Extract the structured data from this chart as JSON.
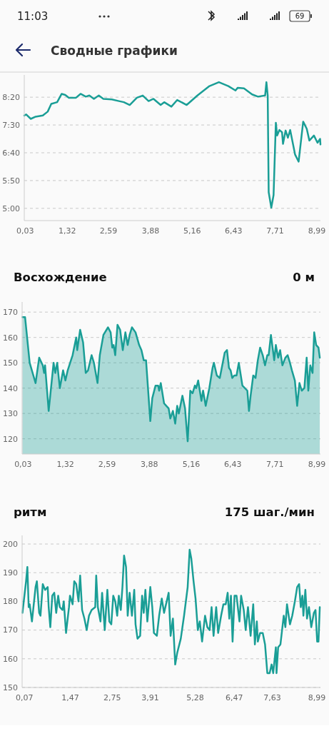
{
  "chart_data": [
    {
      "type": "line",
      "title": "Сводные графики",
      "annotations": [
        "11:03",
        "69"
      ],
      "color": "#1a9e96",
      "grid": "y",
      "xlim": [
        0,
        9.1
      ],
      "ylim": [
        278,
        540
      ],
      "xticks": [
        {
          "value": 0.03,
          "label": "0,03"
        },
        {
          "value": 1.32,
          "label": "1,32"
        },
        {
          "value": 2.59,
          "label": "2,59"
        },
        {
          "value": 3.88,
          "label": "3,88"
        },
        {
          "value": 5.16,
          "label": "5,16"
        },
        {
          "value": 6.43,
          "label": "6,43"
        },
        {
          "value": 7.71,
          "label": "7,71"
        },
        {
          "value": 8.99,
          "label": "8,99"
        }
      ],
      "yticks": [
        {
          "value": 300,
          "label": "5:00"
        },
        {
          "value": 350,
          "label": "5:50"
        },
        {
          "value": 400,
          "label": "6:40"
        },
        {
          "value": 450,
          "label": "7:30"
        },
        {
          "value": 500,
          "label": "8:20"
        }
      ],
      "x": [
        0,
        0.06,
        0.2,
        0.35,
        0.57,
        0.72,
        0.83,
        1.01,
        1.15,
        1.26,
        1.37,
        1.59,
        1.73,
        1.89,
        2.0,
        2.14,
        2.29,
        2.43,
        2.69,
        2.91,
        3.06,
        3.24,
        3.46,
        3.64,
        3.82,
        3.97,
        4.19,
        4.3,
        4.52,
        4.7,
        4.99,
        5.32,
        5.69,
        5.98,
        6.27,
        6.49,
        6.56,
        6.75,
        7.0,
        7.18,
        7.4,
        7.44,
        7.48,
        7.51,
        7.59,
        7.66,
        7.73,
        7.77,
        7.84,
        7.92,
        7.95,
        8.03,
        8.1,
        8.17,
        8.32,
        8.43,
        8.57,
        8.68,
        8.76,
        8.9,
        9.01,
        9.09,
        9.1
      ],
      "values": [
        467,
        469,
        461,
        465,
        467,
        474,
        488,
        491,
        506,
        504,
        499,
        499,
        506,
        501,
        503,
        497,
        503,
        497,
        496,
        493,
        491,
        486,
        499,
        503,
        493,
        497,
        486,
        491,
        483,
        495,
        486,
        503,
        520,
        527,
        520,
        512,
        517,
        516,
        505,
        501,
        503,
        527,
        503,
        329,
        301,
        324,
        454,
        431,
        441,
        437,
        416,
        440,
        427,
        441,
        397,
        384,
        456,
        443,
        422,
        431,
        418,
        425,
        415
      ]
    },
    {
      "type": "area",
      "title": "Восхождение",
      "subtitle": "0 м",
      "color": "#1a9e96",
      "grid": "y",
      "xlim": [
        0,
        9.1
      ],
      "ylim": [
        114,
        174
      ],
      "xticks": [
        {
          "value": 0.03,
          "label": "0,03"
        },
        {
          "value": 1.32,
          "label": "1,32"
        },
        {
          "value": 2.59,
          "label": "2,59"
        },
        {
          "value": 3.88,
          "label": "3,88"
        },
        {
          "value": 5.16,
          "label": "5,16"
        },
        {
          "value": 6.43,
          "label": "6,43"
        },
        {
          "value": 7.71,
          "label": "7,71"
        },
        {
          "value": 8.99,
          "label": "8,99"
        }
      ],
      "yticks": [
        120,
        130,
        140,
        150,
        160,
        170
      ],
      "x": [
        0.01,
        0.09,
        0.23,
        0.41,
        0.52,
        0.63,
        0.67,
        0.7,
        0.81,
        0.96,
        1.01,
        1.07,
        1.15,
        1.25,
        1.32,
        1.39,
        1.54,
        1.65,
        1.68,
        1.77,
        1.86,
        1.94,
        2.01,
        2.12,
        2.19,
        2.3,
        2.37,
        2.48,
        2.62,
        2.7,
        2.75,
        2.79,
        2.84,
        2.91,
        2.99,
        3.07,
        3.15,
        3.22,
        3.28,
        3.35,
        3.46,
        3.57,
        3.64,
        3.71,
        3.78,
        3.91,
        3.97,
        4.07,
        4.15,
        4.18,
        4.23,
        4.33,
        4.4,
        4.47,
        4.52,
        4.6,
        4.67,
        4.73,
        4.78,
        4.89,
        4.97,
        5.05,
        5.13,
        5.2,
        5.27,
        5.31,
        5.37,
        5.47,
        5.52,
        5.6,
        5.71,
        5.81,
        5.85,
        5.94,
        6.03,
        6.18,
        6.25,
        6.31,
        6.36,
        6.41,
        6.47,
        6.54,
        6.61,
        6.72,
        6.87,
        6.92,
        6.97,
        7.05,
        7.12,
        7.19,
        7.26,
        7.34,
        7.41,
        7.48,
        7.52,
        7.59,
        7.69,
        7.74,
        7.81,
        7.87,
        7.94,
        8.03,
        8.1,
        8.17,
        8.23,
        8.32,
        8.39,
        8.46,
        8.53,
        8.61,
        8.68,
        8.73,
        8.79,
        8.86,
        8.91,
        8.97,
        9.04,
        9.08
      ],
      "values": [
        168,
        168,
        150,
        142,
        152,
        149,
        146,
        149,
        131,
        150,
        146,
        150,
        140,
        147,
        143,
        147,
        153,
        160,
        155,
        163,
        158,
        146,
        147,
        153,
        150,
        142,
        153,
        161,
        164,
        162,
        156,
        157,
        153,
        165,
        163,
        155,
        162,
        157,
        161,
        164,
        162,
        157,
        155,
        151,
        151,
        127,
        136,
        141,
        141,
        139,
        142,
        134,
        133,
        132,
        128,
        131,
        126,
        133,
        130,
        137,
        132,
        119,
        139,
        138,
        141,
        140,
        143,
        135,
        139,
        133,
        140,
        148,
        150,
        145,
        144,
        154,
        155,
        148,
        147,
        144,
        145,
        145,
        150,
        141,
        139,
        131,
        137,
        145,
        144,
        151,
        156,
        153,
        149,
        153,
        153,
        161,
        151,
        157,
        152,
        155,
        149,
        152,
        153,
        150,
        147,
        143,
        133,
        142,
        139,
        140,
        152,
        139,
        149,
        146,
        162,
        157,
        156,
        152
      ]
    },
    {
      "type": "line",
      "title": "ритм",
      "subtitle": "175 шаг./мин",
      "color": "#1a9e96",
      "grid": "y",
      "xlim": [
        0,
        9.1
      ],
      "ylim": [
        150,
        203
      ],
      "xticks": [
        {
          "value": 0.07,
          "label": "0,07"
        },
        {
          "value": 1.47,
          "label": "1,47"
        },
        {
          "value": 2.75,
          "label": "2,75"
        },
        {
          "value": 3.91,
          "label": "3,91"
        },
        {
          "value": 5.28,
          "label": "5,28"
        },
        {
          "value": 6.47,
          "label": "6,47"
        },
        {
          "value": 7.63,
          "label": "7,63"
        },
        {
          "value": 8.99,
          "label": "8,99"
        }
      ],
      "yticks": [
        150,
        160,
        170,
        180,
        190,
        200
      ],
      "x": [
        0.01,
        0.12,
        0.16,
        0.2,
        0.23,
        0.3,
        0.41,
        0.45,
        0.52,
        0.56,
        0.63,
        0.7,
        0.78,
        0.81,
        0.86,
        0.92,
        0.98,
        1.04,
        1.1,
        1.15,
        1.23,
        1.27,
        1.34,
        1.43,
        1.46,
        1.54,
        1.59,
        1.65,
        1.72,
        1.77,
        1.83,
        1.9,
        1.97,
        2.04,
        2.12,
        2.23,
        2.26,
        2.31,
        2.39,
        2.44,
        2.52,
        2.6,
        2.66,
        2.72,
        2.78,
        2.84,
        2.9,
        2.95,
        3.01,
        3.06,
        3.11,
        3.17,
        3.22,
        3.28,
        3.35,
        3.42,
        3.46,
        3.52,
        3.6,
        3.66,
        3.71,
        3.76,
        3.82,
        3.91,
        3.97,
        4.02,
        4.11,
        4.18,
        4.26,
        4.33,
        4.47,
        4.53,
        4.6,
        4.67,
        4.73,
        4.84,
        4.94,
        5.05,
        5.11,
        5.16,
        5.23,
        5.29,
        5.36,
        5.42,
        5.49,
        5.58,
        5.65,
        5.72,
        5.78,
        5.84,
        5.92,
        5.98,
        6.07,
        6.14,
        6.21,
        6.27,
        6.32,
        6.37,
        6.42,
        6.48,
        6.54,
        6.63,
        6.68,
        6.76,
        6.82,
        6.89,
        6.97,
        7.05,
        7.1,
        7.16,
        7.19,
        7.26,
        7.34,
        7.41,
        7.48,
        7.55,
        7.61,
        7.66,
        7.74,
        7.76,
        7.81,
        7.88,
        7.98,
        8.03,
        8.08,
        8.17,
        8.24,
        8.32,
        8.39,
        8.45,
        8.5,
        8.55,
        8.58,
        8.64,
        8.69,
        8.75,
        8.82,
        8.9,
        8.95,
        9.0,
        9.04,
        9.08
      ],
      "values": [
        176,
        187,
        192,
        178,
        179,
        173,
        185,
        187,
        176,
        175,
        186,
        184,
        185,
        178,
        171,
        182,
        183,
        176,
        182,
        178,
        177,
        180,
        169,
        178,
        182,
        179,
        187,
        186,
        180,
        189,
        177,
        174,
        170,
        175,
        177,
        178,
        189,
        178,
        173,
        183,
        170,
        184,
        173,
        172,
        182,
        180,
        175,
        182,
        177,
        185,
        196,
        192,
        175,
        183,
        175,
        184,
        172,
        167,
        168,
        182,
        176,
        184,
        173,
        185,
        178,
        169,
        168,
        175,
        181,
        176,
        183,
        168,
        174,
        158,
        162,
        167,
        175,
        185,
        198,
        195,
        187,
        181,
        170,
        173,
        166,
        175,
        171,
        170,
        178,
        168,
        178,
        169,
        175,
        179,
        179,
        183,
        174,
        182,
        166,
        182,
        182,
        173,
        182,
        177,
        170,
        178,
        168,
        179,
        165,
        173,
        166,
        169,
        169,
        165,
        155,
        155,
        158,
        155,
        164,
        155,
        164,
        165,
        175,
        171,
        179,
        172,
        175,
        180,
        185,
        186,
        178,
        182,
        175,
        184,
        174,
        178,
        171,
        176,
        177,
        166,
        166,
        178
      ]
    }
  ]
}
